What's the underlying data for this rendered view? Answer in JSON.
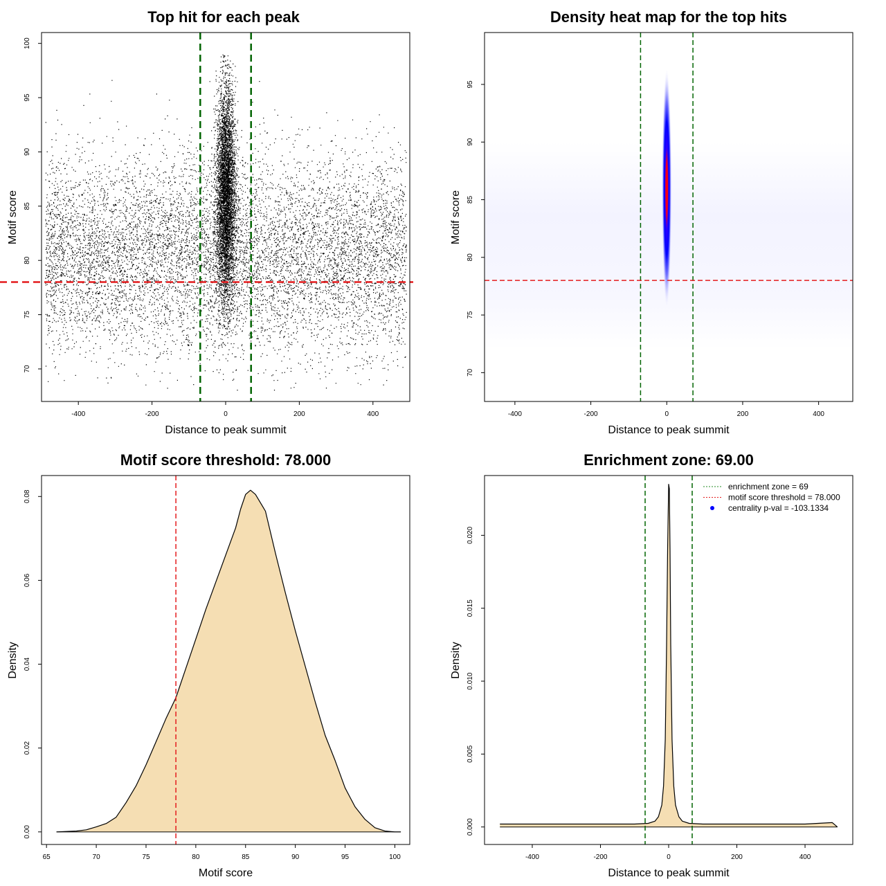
{
  "chart_data": [
    {
      "id": "scatter",
      "type": "scatter",
      "title": "Top hit for each peak",
      "xlabel": "Distance to peak summit",
      "ylabel": "Motif score",
      "xlim": [
        -500,
        500
      ],
      "ylim": [
        67,
        101
      ],
      "xticks": [
        -400,
        -200,
        0,
        200,
        400
      ],
      "yticks": [
        70,
        75,
        80,
        85,
        90,
        95,
        100
      ],
      "vlines": [
        -69,
        69
      ],
      "hline": 78,
      "description_of_points": {
        "background": {
          "x_range": [
            -490,
            490
          ],
          "y_center": 80.5,
          "y_sd": 4.5,
          "y_range": [
            68,
            97.5
          ]
        },
        "central": {
          "x_center": 0,
          "x_sd": 13,
          "y_center": 86,
          "y_sd": 5,
          "y_range": [
            72,
            99
          ]
        }
      },
      "colors": {
        "points": "#000000",
        "vlines": "#006400",
        "hline": "#e41a1c"
      }
    },
    {
      "id": "heatmap",
      "type": "heatmap",
      "title": "Density heat map for the top hits",
      "xlabel": "Distance to peak summit",
      "ylabel": "Motif score",
      "xlim": [
        -480,
        490
      ],
      "ylim": [
        67.5,
        99.5
      ],
      "xticks": [
        -400,
        -200,
        0,
        200,
        400
      ],
      "yticks": [
        70,
        75,
        80,
        85,
        90,
        95
      ],
      "vlines": [
        -69,
        69
      ],
      "hline": 78,
      "density_peak": {
        "x": 0,
        "y": 86
      },
      "colors": {
        "low": "#ffffff",
        "mid": "#0000ff",
        "high": "#ff0000",
        "vlines": "#006400",
        "hline": "#e41a1c"
      }
    },
    {
      "id": "score-density",
      "type": "area",
      "title": "Motif score threshold: 78.000",
      "xlabel": "Motif score",
      "ylabel": "Density",
      "xlim": [
        64.5,
        101.5
      ],
      "ylim": [
        -0.003,
        0.085
      ],
      "xticks": [
        65,
        70,
        75,
        80,
        85,
        90,
        95,
        100
      ],
      "yticks": [
        0.0,
        0.02,
        0.04,
        0.06,
        0.08
      ],
      "ytick_labels": [
        "0.00",
        "0.02",
        "0.04",
        "0.06",
        "0.08"
      ],
      "x": [
        66,
        68,
        69,
        70,
        71,
        72,
        73,
        74,
        75,
        76,
        77,
        78,
        79,
        80,
        81,
        82,
        83,
        84,
        84.5,
        85,
        85.5,
        86,
        87,
        88,
        89,
        90,
        91,
        92,
        93,
        94,
        95,
        96,
        97,
        98,
        99,
        100,
        100.6
      ],
      "y": [
        0.0,
        0.0002,
        0.0005,
        0.0012,
        0.002,
        0.0035,
        0.007,
        0.011,
        0.016,
        0.0215,
        0.027,
        0.032,
        0.039,
        0.046,
        0.053,
        0.0595,
        0.066,
        0.0725,
        0.077,
        0.0805,
        0.0815,
        0.0805,
        0.0765,
        0.0665,
        0.057,
        0.048,
        0.0395,
        0.031,
        0.023,
        0.017,
        0.0105,
        0.006,
        0.003,
        0.001,
        0.0002,
        0.0,
        0.0
      ],
      "vline": 78,
      "colors": {
        "fill": "#f5deb3",
        "line": "#000000",
        "vline": "#e41a1c"
      }
    },
    {
      "id": "position-density",
      "type": "area",
      "title": "Enrichment zone: 69.00",
      "xlabel": "Distance to peak summit",
      "ylabel": "Density",
      "xlim": [
        -540,
        540
      ],
      "ylim": [
        -0.0012,
        0.0241
      ],
      "xticks": [
        -400,
        -200,
        0,
        200,
        400
      ],
      "yticks": [
        0.0,
        0.005,
        0.01,
        0.015,
        0.02
      ],
      "ytick_labels": [
        "0.000",
        "0.005",
        "0.010",
        "0.015",
        "0.020"
      ],
      "x": [
        -495,
        -400,
        -300,
        -200,
        -100,
        -60,
        -40,
        -30,
        -20,
        -15,
        -10,
        -6,
        -3,
        0,
        2,
        4,
        6,
        10,
        15,
        20,
        30,
        40,
        60,
        100,
        200,
        300,
        400,
        480,
        495
      ],
      "y": [
        0.0002,
        0.0002,
        0.0002,
        0.0002,
        0.0002,
        0.00025,
        0.0004,
        0.0007,
        0.0015,
        0.0028,
        0.006,
        0.0125,
        0.019,
        0.0235,
        0.0232,
        0.019,
        0.0125,
        0.006,
        0.0028,
        0.0015,
        0.0007,
        0.0004,
        0.00025,
        0.0002,
        0.0002,
        0.0002,
        0.0002,
        0.0003,
        0.0
      ],
      "vlines": [
        -69,
        69
      ],
      "legend": {
        "placement": "top-right",
        "items": [
          {
            "label": "enrichment zone = 69",
            "style": "dotted",
            "color": "#228b22"
          },
          {
            "label": "motif score threshold = 78.000",
            "style": "dotted",
            "color": "#e41a1c"
          },
          {
            "label": "centrality p-val = -103.1334",
            "style": "dot",
            "color": "#0000ff"
          }
        ]
      },
      "colors": {
        "fill": "#f5deb3",
        "line": "#000000",
        "vlines": "#006400"
      }
    }
  ]
}
